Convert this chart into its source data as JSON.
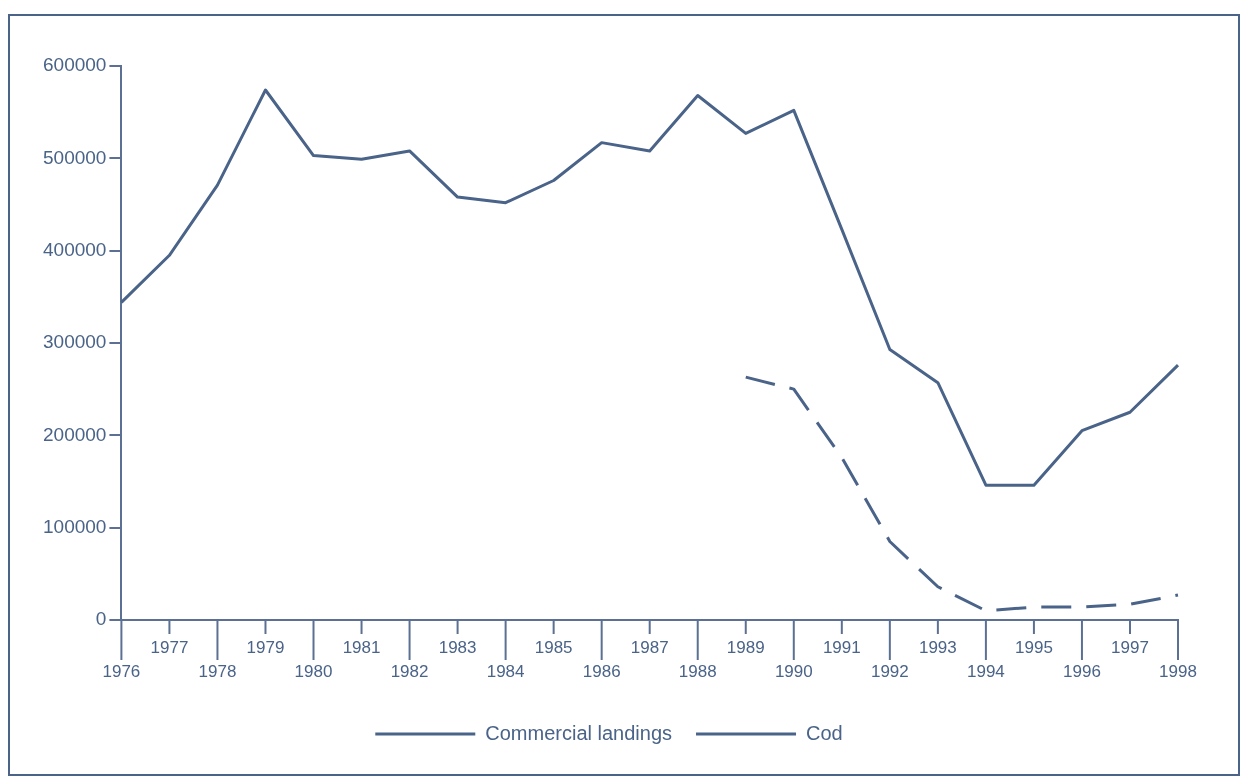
{
  "chart_data": {
    "type": "line",
    "categories": [
      "1976",
      "1977",
      "1978",
      "1979",
      "1980",
      "1981",
      "1982",
      "1983",
      "1984",
      "1985",
      "1986",
      "1987",
      "1988",
      "1989",
      "1990",
      "1991",
      "1992",
      "1993",
      "1994",
      "1995",
      "1996",
      "1997",
      "1998"
    ],
    "series": [
      {
        "name": "Commercial landings",
        "color": "#4a6388",
        "line_style": "solid",
        "values": [
          344000,
          395000,
          471000,
          574000,
          503000,
          499000,
          508000,
          458000,
          452000,
          476000,
          517000,
          508000,
          568000,
          527000,
          552000,
          423000,
          293000,
          257000,
          146000,
          146000,
          205000,
          225000,
          276000
        ]
      },
      {
        "name": "Cod",
        "color": "#4a6388",
        "line_style": "dashed",
        "values": [
          null,
          null,
          null,
          null,
          null,
          null,
          null,
          null,
          null,
          null,
          null,
          null,
          null,
          263000,
          250000,
          176000,
          85000,
          36000,
          10000,
          14000,
          14000,
          17000,
          27000
        ]
      }
    ],
    "ylim": [
      0,
      600000
    ],
    "yticks": [
      0,
      100000,
      200000,
      300000,
      400000,
      500000,
      600000
    ],
    "grid": false,
    "legend": "bottom",
    "marker": "none"
  }
}
